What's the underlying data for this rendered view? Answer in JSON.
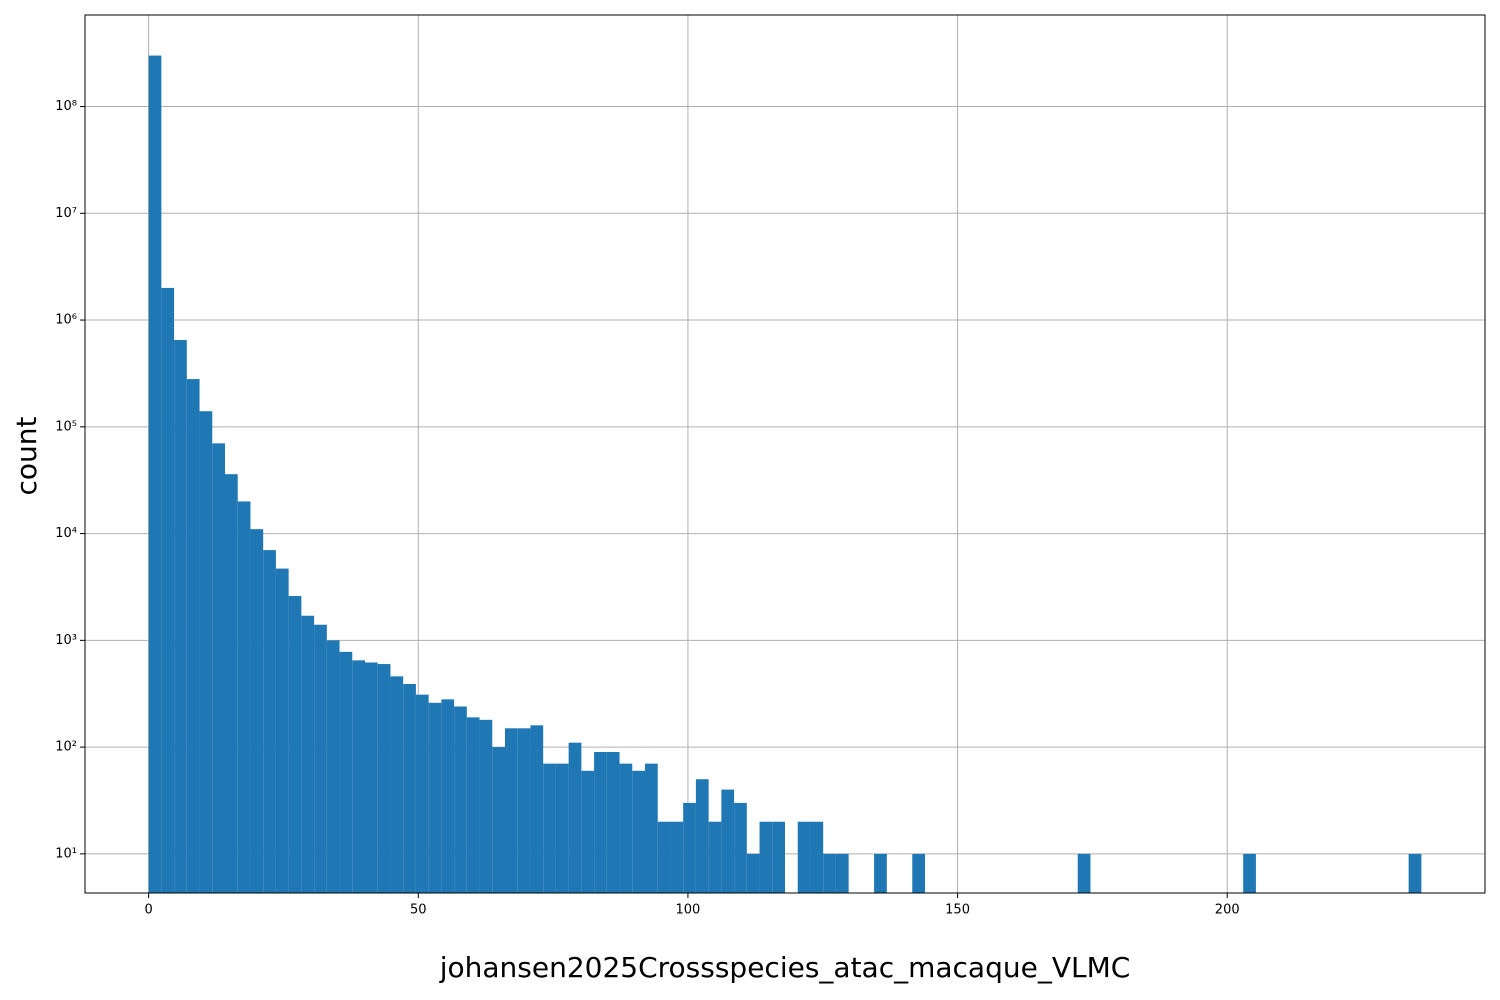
{
  "chart_data": {
    "type": "histogram",
    "xlabel": "johansen2025Crossspecies_atac_macaque_VLMC",
    "ylabel": "count",
    "color": "#1f77b4",
    "grid": true,
    "log_y": true,
    "bins": [
      0,
      2.36,
      4.72,
      7.08,
      9.44,
      11.8,
      14.16,
      16.52,
      18.88,
      21.24,
      23.6,
      25.96,
      28.32,
      30.68,
      33.04,
      35.4,
      37.76,
      40.12,
      42.48,
      44.84,
      47.2,
      49.56,
      51.92,
      54.28,
      56.64,
      59,
      61.36,
      63.72,
      66.08,
      68.44,
      70.8,
      73.16,
      75.52,
      77.88,
      80.24,
      82.6,
      84.96,
      87.32,
      89.68,
      92.04,
      94.4,
      96.76,
      99.12,
      101.48,
      103.84,
      106.2,
      108.56,
      110.92,
      113.28,
      115.64,
      118,
      120.36,
      122.72,
      125.08,
      127.44,
      129.8,
      132.16,
      134.52,
      136.88,
      139.24,
      141.6,
      143.96,
      146.32,
      148.68,
      151.04,
      153.4,
      155.76,
      158.12,
      160.48,
      162.84,
      165.2,
      167.56,
      169.92,
      172.28,
      174.64,
      177,
      179.36,
      181.72,
      184.08,
      186.44,
      188.8,
      191.16,
      193.52,
      195.88,
      198.24,
      200.6,
      202.96,
      205.32,
      207.68,
      210.04,
      212.4,
      214.76,
      217.12,
      219.48,
      221.84,
      224.2,
      226.56,
      228.92,
      231.28,
      233.64,
      236
    ],
    "values": [
      300000000,
      2000000,
      650000,
      280000,
      140000,
      70000,
      36000,
      20000,
      11000,
      7000,
      4700,
      2600,
      1700,
      1400,
      1000,
      780,
      650,
      620,
      600,
      460,
      390,
      310,
      260,
      280,
      240,
      190,
      180,
      100,
      150,
      150,
      160,
      70,
      70,
      110,
      60,
      90,
      90,
      70,
      60,
      70,
      20,
      20,
      30,
      50,
      20,
      40,
      30,
      10,
      20,
      20,
      0,
      20,
      20,
      10,
      10,
      0,
      0,
      10,
      0,
      0,
      10,
      0,
      0,
      0,
      0,
      0,
      0,
      0,
      0,
      0,
      0,
      0,
      0,
      10,
      0,
      0,
      0,
      0,
      0,
      0,
      0,
      0,
      0,
      0,
      0,
      0,
      10,
      0,
      0,
      0,
      0,
      0,
      0,
      0,
      0,
      0,
      0,
      0,
      0,
      10
    ],
    "xlim": [
      -11.8,
      247.8
    ],
    "xticks": [
      0,
      50,
      100,
      150,
      200
    ],
    "ylim": [
      4.3,
      720000000
    ],
    "yticks": [
      {
        "value": 10,
        "label": "10¹"
      },
      {
        "value": 100,
        "label": "10²"
      },
      {
        "value": 1000,
        "label": "10³"
      },
      {
        "value": 10000,
        "label": "10⁴"
      },
      {
        "value": 100000,
        "label": "10⁵"
      },
      {
        "value": 1000000,
        "label": "10⁶"
      },
      {
        "value": 10000000,
        "label": "10⁷"
      },
      {
        "value": 100000000,
        "label": "10⁸"
      }
    ]
  }
}
